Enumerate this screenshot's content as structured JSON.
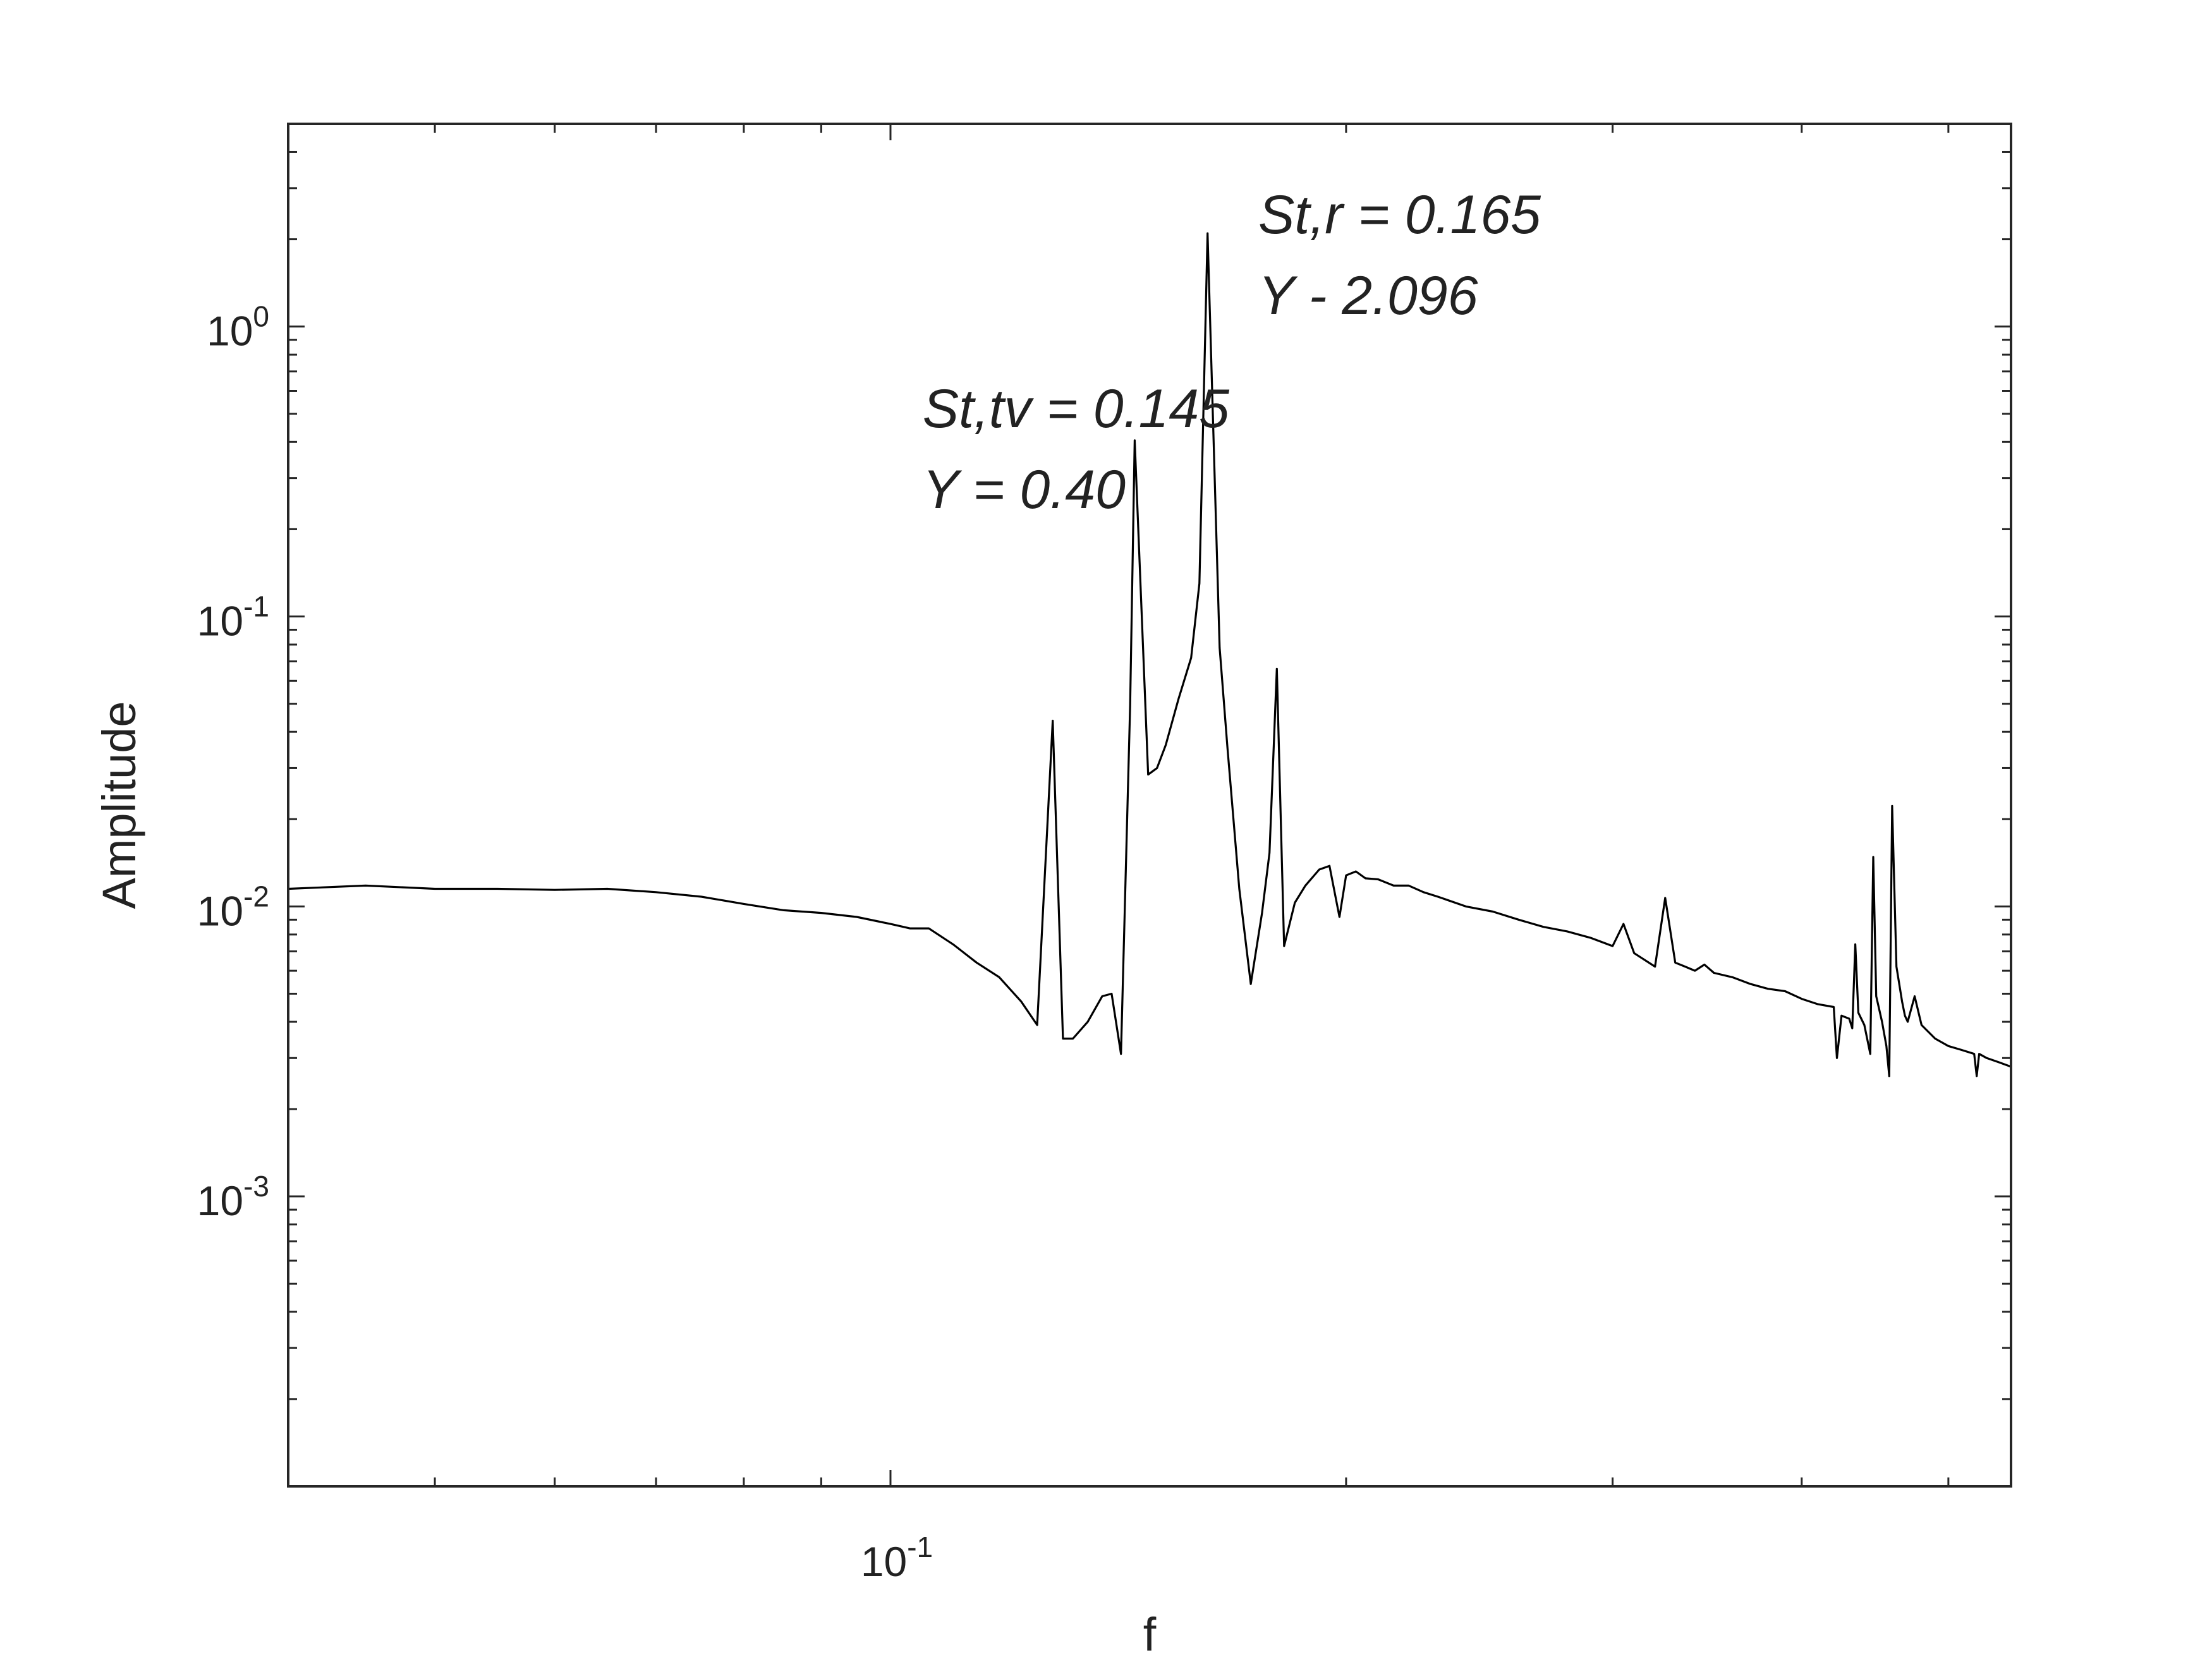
{
  "chart_data": {
    "type": "line",
    "title": "",
    "xlabel": "f",
    "ylabel": "Amplitude",
    "xscale": "log",
    "yscale": "log",
    "xlim": [
      0.04,
      0.55
    ],
    "ylim": [
      0.0001,
      5
    ],
    "grid": false,
    "x_ticks": [
      {
        "value": 0.1,
        "base": "10",
        "exp": "-1"
      }
    ],
    "y_ticks": [
      {
        "value": 1,
        "base": "10",
        "exp": "0"
      },
      {
        "value": 0.1,
        "base": "10",
        "exp": "-1"
      },
      {
        "value": 0.01,
        "base": "10",
        "exp": "-2"
      },
      {
        "value": 0.001,
        "base": "10",
        "exp": "-3"
      }
    ],
    "annotations": [
      {
        "lines": [
          "St,tv = 0.145",
          "Y = 0.40"
        ],
        "x": 0.105,
        "y": 0.45
      },
      {
        "lines": [
          "St,r = 0.165",
          "Y - 2.096"
        ],
        "x": 0.175,
        "y": 2.1
      }
    ],
    "series": [
      {
        "color": "#000000",
        "x": [
          0.04,
          0.045,
          0.05,
          0.055,
          0.06,
          0.065,
          0.07,
          0.075,
          0.08,
          0.085,
          0.09,
          0.095,
          0.1,
          0.103,
          0.106,
          0.11,
          0.114,
          0.118,
          0.122,
          0.125,
          0.128,
          0.13,
          0.132,
          0.135,
          0.138,
          0.14,
          0.142,
          0.144,
          0.145,
          0.148,
          0.15,
          0.152,
          0.155,
          0.158,
          0.16,
          0.162,
          0.165,
          0.167,
          0.17,
          0.173,
          0.176,
          0.178,
          0.18,
          0.182,
          0.185,
          0.188,
          0.192,
          0.195,
          0.198,
          0.2,
          0.203,
          0.206,
          0.21,
          0.215,
          0.22,
          0.225,
          0.23,
          0.24,
          0.25,
          0.26,
          0.27,
          0.28,
          0.29,
          0.3,
          0.305,
          0.31,
          0.32,
          0.325,
          0.33,
          0.335,
          0.34,
          0.345,
          0.35,
          0.36,
          0.37,
          0.38,
          0.39,
          0.4,
          0.41,
          0.42,
          0.422,
          0.425,
          0.43,
          0.432,
          0.434,
          0.436,
          0.44,
          0.444,
          0.446,
          0.448,
          0.452,
          0.455,
          0.457,
          0.459,
          0.462,
          0.466,
          0.468,
          0.47,
          0.475,
          0.48,
          0.49,
          0.5,
          0.51,
          0.52,
          0.522,
          0.524,
          0.53,
          0.54,
          0.55
        ],
        "y": [
          0.0115,
          0.0118,
          0.0115,
          0.0115,
          0.0114,
          0.0115,
          0.0112,
          0.0108,
          0.0102,
          0.0097,
          0.0095,
          0.0092,
          0.0087,
          0.0084,
          0.0084,
          0.0074,
          0.0064,
          0.0057,
          0.0047,
          0.0039,
          0.0437,
          0.0035,
          0.0035,
          0.004,
          0.0049,
          0.005,
          0.0031,
          0.0495,
          0.405,
          0.0285,
          0.03,
          0.036,
          0.052,
          0.072,
          0.13,
          2.096,
          0.078,
          0.035,
          0.0115,
          0.0054,
          0.0095,
          0.0153,
          0.066,
          0.0073,
          0.0103,
          0.0118,
          0.0134,
          0.0138,
          0.0092,
          0.0128,
          0.0132,
          0.0125,
          0.0124,
          0.0118,
          0.0118,
          0.0112,
          0.0108,
          0.01,
          0.0096,
          0.009,
          0.0085,
          0.0082,
          0.0078,
          0.0073,
          0.0087,
          0.0069,
          0.0062,
          0.0107,
          0.0064,
          0.0062,
          0.006,
          0.0063,
          0.0059,
          0.0057,
          0.0054,
          0.0052,
          0.0051,
          0.0048,
          0.0046,
          0.0045,
          0.003,
          0.0042,
          0.0041,
          0.0038,
          0.0074,
          0.0043,
          0.0039,
          0.0031,
          0.0148,
          0.0049,
          0.004,
          0.0033,
          0.0026,
          0.0222,
          0.0062,
          0.0047,
          0.0042,
          0.004,
          0.0049,
          0.0039,
          0.0035,
          0.0033,
          0.0032,
          0.0031,
          0.0026,
          0.0031,
          0.003,
          0.0029,
          0.0028
        ]
      }
    ]
  }
}
